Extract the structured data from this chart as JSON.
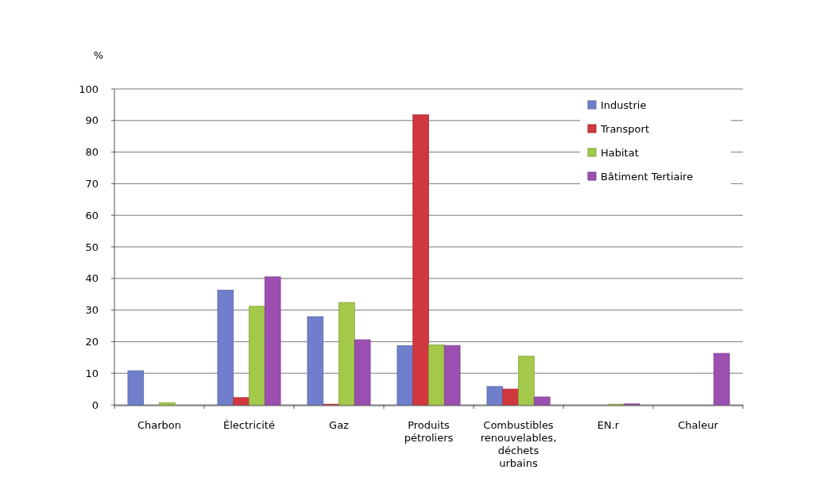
{
  "chart_data": {
    "type": "bar",
    "ylabel": "%",
    "categories": [
      "Charbon",
      "Électricité",
      "Gaz",
      "Produits pétroliers",
      "Combustibles renouvelables, déchets urbains",
      "EN.r",
      "Chaleur"
    ],
    "series": [
      {
        "name": "Industrie",
        "color": "#6f7fcc",
        "values": [
          10.8,
          36.3,
          27.9,
          18.7,
          5.8,
          0,
          0
        ]
      },
      {
        "name": "Transport",
        "color": "#d0373f",
        "values": [
          0,
          2.3,
          0.2,
          91.8,
          5,
          0,
          0
        ]
      },
      {
        "name": "Habitat",
        "color": "#a4c94a",
        "values": [
          0.7,
          31.2,
          32.4,
          19,
          15.4,
          0.2,
          0
        ]
      },
      {
        "name": "Bâtiment Tertiaire",
        "color": "#9b4fb0",
        "values": [
          0,
          40.5,
          20.6,
          18.8,
          2.5,
          0.3,
          16.3
        ]
      }
    ],
    "ylim": [
      0,
      100
    ],
    "yticks": [
      0,
      10,
      20,
      30,
      40,
      50,
      60,
      70,
      80,
      90,
      100
    ],
    "grid": "y",
    "legend": "top right"
  }
}
